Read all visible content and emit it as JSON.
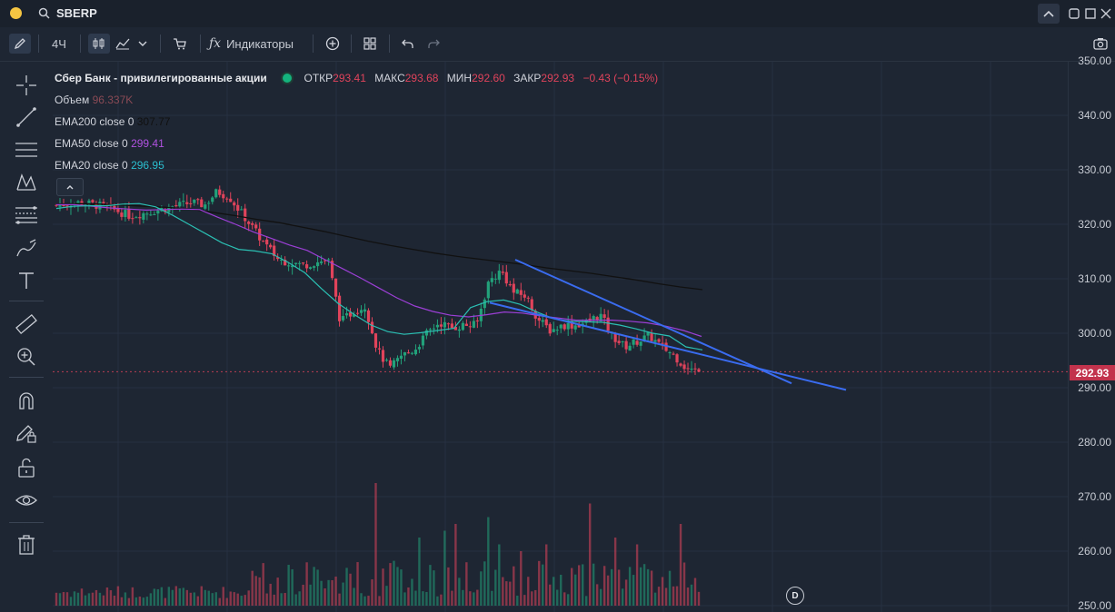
{
  "app": {
    "ticker": "SBERP"
  },
  "toolbar": {
    "interval": "4Ч",
    "indicators_label": "Индикаторы"
  },
  "legend": {
    "instrument": "Сбер Банк - привилегированные акции",
    "open_label": "ОТКР",
    "open": "293.41",
    "high_label": "МАКС",
    "high": "293.68",
    "low_label": "МИН",
    "low": "292.60",
    "close_label": "ЗАКР",
    "close": "292.93",
    "change": "−0.43 (−0.15%)",
    "volume_label": "Объем",
    "volume": "96.337K",
    "ema200_label": "EMA200 close 0",
    "ema200": "307.77",
    "ema50_label": "EMA50 close 0",
    "ema50": "299.41",
    "ema20_label": "EMA20 close 0",
    "ema20": "296.95"
  },
  "price_axis": {
    "ticks": [
      "350.00",
      "340.00",
      "330.00",
      "320.00",
      "310.00",
      "300.00",
      "290.00",
      "280.00",
      "270.00",
      "260.00",
      "250.00"
    ],
    "current": "292.93"
  },
  "badge": {
    "label": "D"
  },
  "colors": {
    "up": "#22a17a",
    "down": "#e0435b",
    "ema200": "#111111",
    "ema50": "#9c3fd6",
    "ema20": "#2bbfb3",
    "channel": "#3a6cf0",
    "background": "#1e2633"
  },
  "chart_data": {
    "type": "candlestick",
    "ylim": [
      250,
      350
    ],
    "series": [
      {
        "name": "Объем",
        "values": []
      },
      {
        "name": "EMA200 close 0",
        "last": 307.77
      },
      {
        "name": "EMA50 close 0",
        "last": 299.41
      },
      {
        "name": "EMA20 close 0",
        "last": 296.95
      }
    ],
    "close_path": [
      323.5,
      323.8,
      324,
      323.6,
      323.2,
      322.4,
      321.5,
      322,
      322.5,
      323,
      323.5,
      324,
      323.5,
      326,
      325,
      322,
      319,
      316,
      313.5,
      313,
      312.5,
      313,
      313.5,
      302,
      304,
      305,
      296.8,
      293.5,
      296,
      297,
      300,
      302,
      301,
      301.5,
      301.5,
      309.5,
      311.5,
      307.5,
      306.8,
      302.5,
      300.5,
      301.5,
      301.5,
      302,
      303.5,
      299.5,
      297.5,
      298.5,
      299.5,
      297.5,
      296,
      293.5,
      292.93
    ],
    "ema200_path": [
      323.7,
      323.8,
      323.7,
      323.5,
      323.3,
      323.1,
      322.8,
      322.2,
      321.6,
      320.9,
      320.3,
      319.5,
      318.7,
      317.8,
      316.9,
      316.1,
      315.4,
      314.7,
      314.1,
      313.6,
      313.1,
      312.6,
      312,
      311.5,
      311,
      310.4,
      309.8,
      309.1,
      308.5,
      308
    ],
    "ema50_path": [
      323.6,
      323.6,
      323.3,
      323,
      322.8,
      322.6,
      322.7,
      322.8,
      322.7,
      321.3,
      320,
      318.6,
      317.4,
      316.2,
      315.2,
      313.5,
      311.8,
      310.1,
      308.3,
      306.5,
      305,
      304,
      303.3,
      303,
      303.4,
      303.9,
      303.7,
      303.2,
      302.8,
      302.4,
      302.4,
      302.4,
      302.2,
      301.9,
      301.3,
      300.5,
      299.41
    ],
    "ema20_path": [
      322.9,
      323.3,
      323.4,
      323.4,
      323.7,
      323.8,
      323.2,
      321.7,
      320,
      318.3,
      316.6,
      315.4,
      315.1,
      314.6,
      313,
      311.1,
      308.2,
      305.5,
      303.4,
      301.5,
      300.3,
      299.8,
      300.1,
      300.5,
      300.9,
      304.7,
      305.8,
      306.1,
      305.3,
      303.9,
      302.7,
      302.2,
      302.1,
      302,
      301.5,
      300.8,
      300,
      299.5,
      297.5,
      296.95
    ],
    "channel_upper": [
      [
        313.5,
        299.7
      ],
      [
        290.8,
        269
      ]
    ],
    "channel_lower": [
      [
        305.6,
        302.5
      ],
      [
        289.6,
        257.7
      ]
    ]
  }
}
